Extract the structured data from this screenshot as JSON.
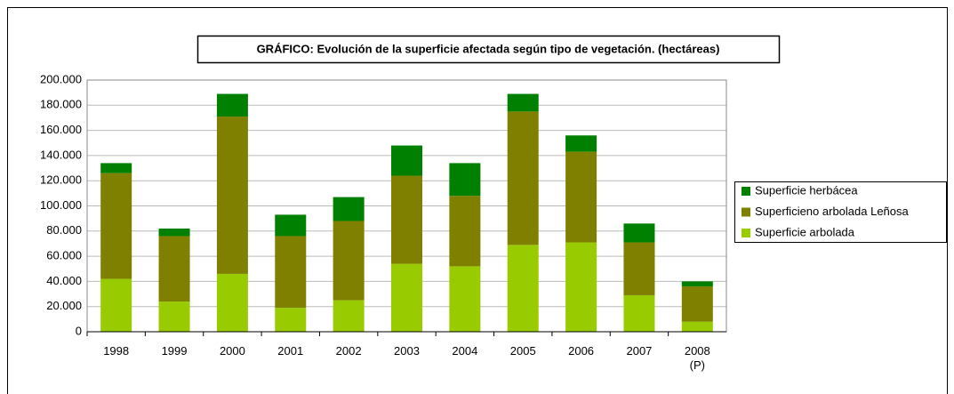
{
  "chart_data": {
    "type": "stacked_bar",
    "title": "GRÁFICO: Evolución de la superficie afectada según tipo de vegetación. (hectáreas)",
    "categories": [
      "1998",
      "1999",
      "2000",
      "2001",
      "2002",
      "2003",
      "2004",
      "2005",
      "2006",
      "2007",
      "2008\n(P)"
    ],
    "series": [
      {
        "name": "Superficie arbolada",
        "color": "#99cc00",
        "values": [
          42000,
          24000,
          46000,
          19000,
          25000,
          54000,
          52000,
          69000,
          71000,
          29000,
          8000
        ]
      },
      {
        "name": "Superficieno arbolada Leñosa",
        "color": "#808000",
        "values": [
          84000,
          52000,
          125000,
          57000,
          63000,
          70000,
          56000,
          106000,
          72000,
          42000,
          28000
        ]
      },
      {
        "name": "Superficie herbácea",
        "color": "#008000",
        "values": [
          8000,
          6000,
          18000,
          17000,
          19000,
          24000,
          26000,
          14000,
          13000,
          15000,
          4000
        ]
      }
    ],
    "ylim": [
      0,
      200000
    ],
    "yticks": [
      0,
      {
        "value": 20000,
        "label": "20.000"
      },
      {
        "value": 40000,
        "label": "40.000"
      },
      {
        "value": 60000,
        "label": "60.000"
      },
      {
        "value": 80000,
        "label": "80.000"
      },
      {
        "value": 100000,
        "label": "100.000"
      },
      {
        "value": 120000,
        "label": "120.000"
      },
      {
        "value": 140000,
        "label": "140.000"
      },
      {
        "value": 160000,
        "label": "160.000"
      },
      {
        "value": 180000,
        "label": "180.000"
      },
      {
        "value": 200000,
        "label": "200.000"
      }
    ],
    "grid": true,
    "legend": "right"
  }
}
